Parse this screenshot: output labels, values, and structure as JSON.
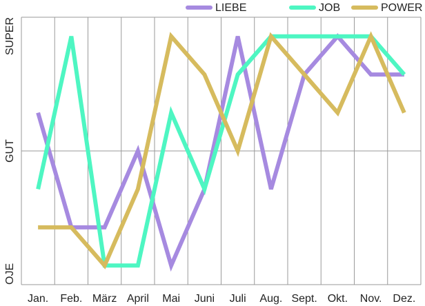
{
  "chart_data": {
    "type": "line",
    "categories": [
      "Jan.",
      "Feb.",
      "März",
      "April",
      "Mai",
      "Juni",
      "Juli",
      "Aug.",
      "Sept.",
      "Okt.",
      "Nov.",
      "Dez."
    ],
    "series": [
      {
        "name": "LIEBE",
        "color": "#a68ae0",
        "values": [
          1,
          -2,
          -2,
          0,
          -3,
          -1,
          3,
          -1,
          2,
          3,
          2,
          2
        ]
      },
      {
        "name": "JOB",
        "color": "#4ef6c2",
        "values": [
          -1,
          3,
          -3,
          -3,
          1,
          -1,
          2,
          3,
          3,
          3,
          3,
          2
        ]
      },
      {
        "name": "POWER",
        "color": "#d6bb5e",
        "values": [
          -2,
          -2,
          -3,
          -1,
          3,
          2,
          0,
          3,
          2,
          1,
          3,
          1
        ]
      }
    ],
    "ylim": [
      -3.5,
      3.5
    ],
    "yticks": [
      {
        "value": -3.5,
        "label": "OJE"
      },
      {
        "value": 0,
        "label": "GUT"
      },
      {
        "value": 3.5,
        "label": "SUPER"
      }
    ],
    "grid": true
  }
}
